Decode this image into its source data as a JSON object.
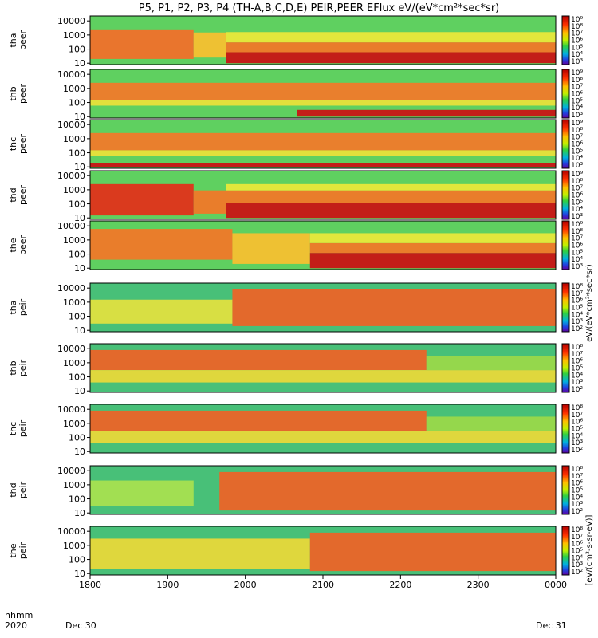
{
  "chart_data": {
    "type": "heatmap",
    "title": "P5, P1, P2, P3, P4 (TH-A,B,C,D,E) PEIR,PEER EFlux eV/(eV*cm²*sec*sr)",
    "x_axis": {
      "ticks": [
        "1800",
        "1900",
        "2000",
        "2100",
        "2200",
        "2300",
        "0000"
      ],
      "left_label_1": "hhmm",
      "left_label_2": "2020",
      "start_date_label": "Dec 30",
      "end_date_label": "Dec 31",
      "range_hhmm": [
        "1800",
        "0000"
      ]
    },
    "y_axis": {
      "scale": "log",
      "ticks": [
        "10",
        "100",
        "1000",
        "10000"
      ]
    },
    "colorbar_label": "eV/(eV*cm²*sec*sr)",
    "colorbar_label_bottom": "[eV/(cm²-s-sr-eV)]",
    "colorbar_ticks_peer": [
      "10⁹",
      "10⁸",
      "10⁷",
      "10⁶",
      "10⁵",
      "10⁴",
      "10³"
    ],
    "colorbar_ticks_peir": [
      "10⁸",
      "10⁷",
      "10⁶",
      "10⁵",
      "10⁴",
      "10³",
      "10²"
    ],
    "panels": [
      {
        "probe": "tha",
        "species": "peer",
        "bands": [
          {
            "x0": 1800,
            "x1": 1920,
            "low": 20,
            "high": 2500,
            "color": "#f0702a"
          },
          {
            "x0": 1920,
            "x1": 1945,
            "low": 25,
            "high": 1500,
            "color": "#f5c030"
          },
          {
            "x0": 1945,
            "x1": 2400,
            "low": 10,
            "high": 60,
            "color": "#c81414"
          },
          {
            "x0": 1945,
            "x1": 2400,
            "low": 60,
            "high": 300,
            "color": "#f07828"
          },
          {
            "x0": 1945,
            "x1": 2400,
            "low": 300,
            "high": 1600,
            "color": "#e8e83a"
          }
        ]
      },
      {
        "probe": "thb",
        "species": "peer",
        "bands": [
          {
            "x0": 1800,
            "x1": 2400,
            "low": 150,
            "high": 2500,
            "color": "#f07a2a"
          },
          {
            "x0": 1800,
            "x1": 2400,
            "low": 60,
            "high": 150,
            "color": "#e8e03a"
          },
          {
            "x0": 2040,
            "x1": 2400,
            "low": 10,
            "high": 30,
            "color": "#c81414"
          }
        ]
      },
      {
        "probe": "thc",
        "species": "peer",
        "bands": [
          {
            "x0": 1800,
            "x1": 2400,
            "low": 150,
            "high": 2500,
            "color": "#f07a2a"
          },
          {
            "x0": 1800,
            "x1": 2400,
            "low": 60,
            "high": 150,
            "color": "#e8e03a"
          },
          {
            "x0": 1800,
            "x1": 2400,
            "low": 10,
            "high": 18,
            "color": "#c81414"
          }
        ]
      },
      {
        "probe": "thd",
        "species": "peer",
        "bands": [
          {
            "x0": 1800,
            "x1": 1920,
            "low": 15,
            "high": 2500,
            "color": "#e0321a"
          },
          {
            "x0": 1920,
            "x1": 1945,
            "low": 20,
            "high": 900,
            "color": "#f07828"
          },
          {
            "x0": 1945,
            "x1": 2400,
            "low": 10,
            "high": 120,
            "color": "#c81414"
          },
          {
            "x0": 1945,
            "x1": 2400,
            "low": 120,
            "high": 900,
            "color": "#f07828"
          },
          {
            "x0": 1945,
            "x1": 2400,
            "low": 900,
            "high": 2500,
            "color": "#e8e83a"
          }
        ]
      },
      {
        "probe": "the",
        "species": "peer",
        "bands": [
          {
            "x0": 1800,
            "x1": 1950,
            "low": 40,
            "high": 6000,
            "color": "#f07828"
          },
          {
            "x0": 1950,
            "x1": 2050,
            "low": 20,
            "high": 3000,
            "color": "#f5c030"
          },
          {
            "x0": 2050,
            "x1": 2400,
            "low": 10,
            "high": 120,
            "color": "#c81414"
          },
          {
            "x0": 2050,
            "x1": 2400,
            "low": 120,
            "high": 600,
            "color": "#f07828"
          },
          {
            "x0": 2050,
            "x1": 2400,
            "low": 600,
            "high": 3000,
            "color": "#e8e83a"
          }
        ]
      },
      {
        "probe": "tha",
        "species": "peir",
        "bands": [
          {
            "x0": 1800,
            "x1": 1950,
            "low": 30,
            "high": 1500,
            "color": "#e0e040"
          },
          {
            "x0": 1950,
            "x1": 2400,
            "low": 20,
            "high": 8000,
            "color": "#ec6428"
          }
        ]
      },
      {
        "probe": "thb",
        "species": "peir",
        "bands": [
          {
            "x0": 1800,
            "x1": 2220,
            "low": 300,
            "high": 8000,
            "color": "#ec6428"
          },
          {
            "x0": 1800,
            "x1": 2400,
            "low": 40,
            "high": 300,
            "color": "#e8d83a"
          },
          {
            "x0": 2220,
            "x1": 2400,
            "low": 300,
            "high": 3000,
            "color": "#9ad84a"
          }
        ]
      },
      {
        "probe": "thc",
        "species": "peir",
        "bands": [
          {
            "x0": 1800,
            "x1": 2220,
            "low": 300,
            "high": 8000,
            "color": "#ec6428"
          },
          {
            "x0": 1800,
            "x1": 2400,
            "low": 40,
            "high": 300,
            "color": "#e8d83a"
          },
          {
            "x0": 2220,
            "x1": 2400,
            "low": 300,
            "high": 3000,
            "color": "#9ad84a"
          }
        ]
      },
      {
        "probe": "thd",
        "species": "peir",
        "bands": [
          {
            "x0": 1800,
            "x1": 1920,
            "low": 30,
            "high": 2000,
            "color": "#a8e050"
          },
          {
            "x0": 1940,
            "x1": 2400,
            "low": 15,
            "high": 8000,
            "color": "#ec6428"
          }
        ]
      },
      {
        "probe": "the",
        "species": "peir",
        "bands": [
          {
            "x0": 1800,
            "x1": 2050,
            "low": 20,
            "high": 3000,
            "color": "#e8d83a"
          },
          {
            "x0": 2050,
            "x1": 2400,
            "low": 15,
            "high": 8000,
            "color": "#ec6428"
          }
        ]
      }
    ]
  }
}
